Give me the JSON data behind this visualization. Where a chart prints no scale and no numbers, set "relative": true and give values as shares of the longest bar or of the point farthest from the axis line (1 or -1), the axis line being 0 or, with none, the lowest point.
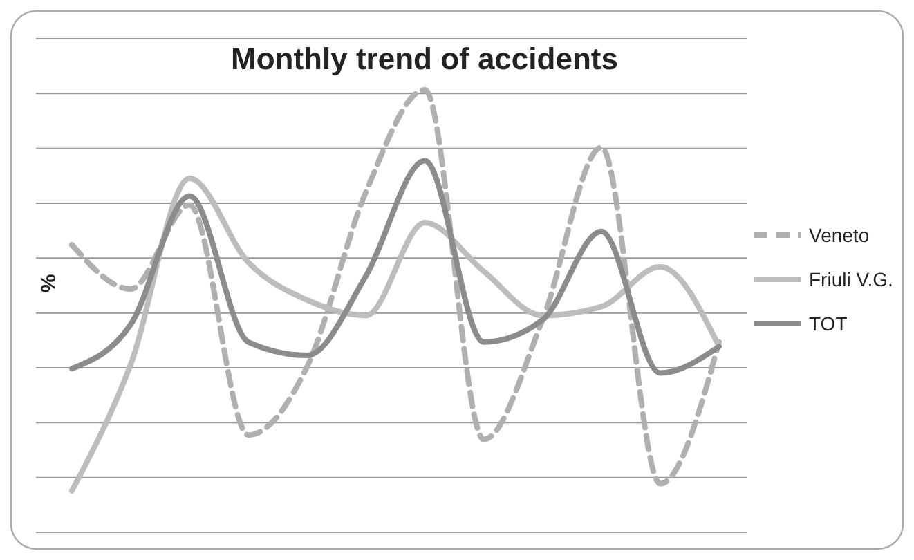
{
  "chart_data": {
    "type": "line",
    "title": "Monthly trend of accidents",
    "ylabel": "%",
    "relative": true,
    "grid": "y",
    "legend": "right",
    "marker": "none",
    "categories": [
      null,
      null,
      null,
      null,
      null,
      null,
      null,
      null,
      null,
      null,
      null,
      null
    ],
    "series": [
      {
        "name": "Veneto",
        "color": "#b0b0b0",
        "line_style": "dashed",
        "values": [
          0.65,
          0.55,
          0.74,
          0.22,
          0.375,
          0.77,
          1.0,
          0.21,
          0.48,
          0.87,
          0.11,
          0.43
        ]
      },
      {
        "name": "Friuli V.G.",
        "color": "#bdbdbd",
        "line_style": "solid",
        "values": [
          0.094,
          0.38,
          0.8,
          0.61,
          0.525,
          0.49,
          0.7,
          0.59,
          0.49,
          0.51,
          0.6,
          0.42
        ]
      },
      {
        "name": "TOT",
        "color": "#8c8c8c",
        "line_style": "solid",
        "values": [
          0.37,
          0.47,
          0.76,
          0.43,
          0.4,
          0.58,
          0.84,
          0.43,
          0.48,
          0.68,
          0.36,
          0.42
        ]
      }
    ]
  }
}
